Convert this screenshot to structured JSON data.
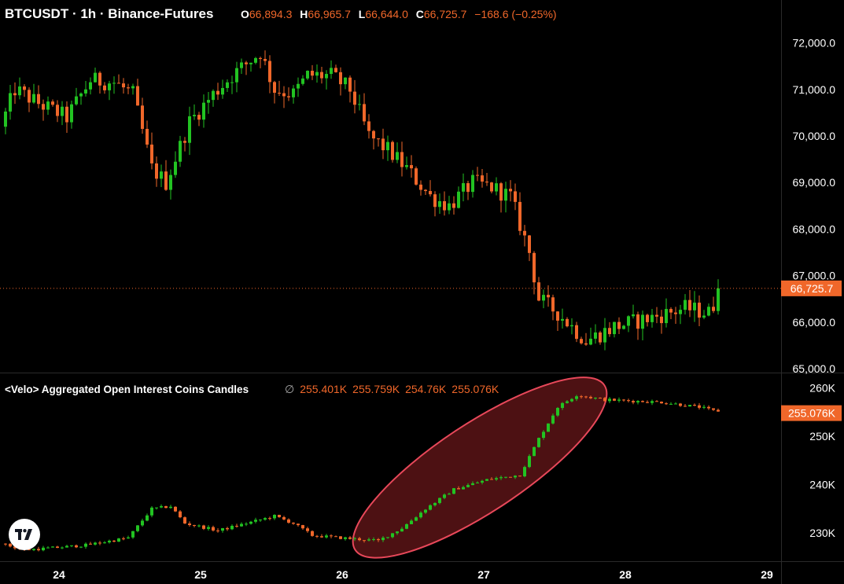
{
  "header": {
    "symbol": "BTCUSDT",
    "interval": "1h",
    "exchange": "Binance-Futures",
    "title": "BTCUSDT · 1h · Binance-Futures",
    "open_label": "O",
    "open": "66,894.3",
    "high_label": "H",
    "high": "66,965.7",
    "low_label": "L",
    "low": "66,644.0",
    "close_label": "C",
    "close": "66,725.7",
    "change": "−168.6 (−0.25%)"
  },
  "indicator": {
    "name": "<Velo> Aggregated Open Interest Coins Candles",
    "zero_symbol": "∅",
    "values": [
      "255.401K",
      "255.759K",
      "254.76K",
      "255.076K"
    ]
  },
  "colors": {
    "background": "#000000",
    "up": "#22c322",
    "down": "#f0672a",
    "axis_text": "#ffffff",
    "price_label_bg": "#f0672a",
    "highlight_stroke": "#e8485a",
    "highlight_fill": "#5a1416"
  },
  "icons": {
    "logo": "tradingview-logo"
  },
  "chart_data": [
    {
      "type": "candlestick",
      "title": "BTCUSDT · 1h · Binance-Futures",
      "y_ticks": [
        "72,000.0",
        "71,000.0",
        "70,000.0",
        "69,000.0",
        "68,000.0",
        "67,000.0",
        "66,000.0",
        "65,000.0"
      ],
      "y_tick_values": [
        72000,
        71000,
        70000,
        69000,
        68000,
        67000,
        66000,
        65000
      ],
      "ylim": [
        64950,
        72450
      ],
      "last_price": 66725.7,
      "last_price_label": "66,725.7",
      "trend": [
        [
          0,
          70200
        ],
        [
          3,
          71000
        ],
        [
          8,
          70700
        ],
        [
          14,
          70400
        ],
        [
          19,
          71200
        ],
        [
          24,
          71150
        ],
        [
          28,
          70900
        ],
        [
          32,
          69300
        ],
        [
          35,
          69000
        ],
        [
          40,
          70300
        ],
        [
          45,
          70900
        ],
        [
          49,
          71300
        ],
        [
          55,
          71800
        ],
        [
          58,
          71000
        ],
        [
          62,
          70900
        ],
        [
          65,
          71300
        ],
        [
          70,
          71300
        ],
        [
          74,
          71000
        ],
        [
          78,
          70000
        ],
        [
          82,
          69700
        ],
        [
          86,
          69300
        ],
        [
          91,
          68700
        ],
        [
          95,
          68500
        ],
        [
          100,
          69000
        ],
        [
          104,
          68900
        ],
        [
          108,
          68700
        ],
        [
          112,
          67500
        ],
        [
          114,
          66500
        ],
        [
          118,
          66200
        ],
        [
          124,
          65600
        ],
        [
          130,
          65900
        ],
        [
          138,
          66100
        ],
        [
          145,
          66300
        ],
        [
          150,
          66200
        ],
        [
          154,
          66900
        ],
        [
          156,
          66700
        ]
      ]
    },
    {
      "type": "candlestick",
      "title": "<Velo> Aggregated Open Interest Coins Candles",
      "y_ticks": [
        "260K",
        "250K",
        "240K",
        "230K"
      ],
      "y_tick_values": [
        260000,
        250000,
        240000,
        230000
      ],
      "ylim": [
        224500,
        262800
      ],
      "last_value": 255076,
      "last_value_label": "255.076K",
      "trend": [
        [
          0,
          227800
        ],
        [
          5,
          226500
        ],
        [
          12,
          227000
        ],
        [
          18,
          227500
        ],
        [
          27,
          229000
        ],
        [
          32,
          235000
        ],
        [
          36,
          235500
        ],
        [
          39,
          232000
        ],
        [
          46,
          230500
        ],
        [
          54,
          232500
        ],
        [
          58,
          233500
        ],
        [
          62,
          232000
        ],
        [
          66,
          229500
        ],
        [
          72,
          229000
        ],
        [
          80,
          228400
        ],
        [
          85,
          231000
        ],
        [
          90,
          235000
        ],
        [
          96,
          239000
        ],
        [
          103,
          241000
        ],
        [
          110,
          242000
        ],
        [
          114,
          249500
        ],
        [
          118,
          256000
        ],
        [
          122,
          258500
        ],
        [
          128,
          257500
        ],
        [
          140,
          257000
        ],
        [
          148,
          256000
        ],
        [
          152,
          255000
        ],
        [
          156,
          255076
        ]
      ]
    }
  ],
  "x_axis": {
    "labels": [
      "24",
      "25",
      "26",
      "27",
      "28",
      "29"
    ],
    "bar_index": [
      11,
      41,
      71,
      101,
      131,
      161
    ]
  },
  "highlight": {
    "shape": "ellipse",
    "from": {
      "bar": 78,
      "value": 229000
    },
    "to": {
      "bar": 123,
      "value": 258000
    }
  }
}
